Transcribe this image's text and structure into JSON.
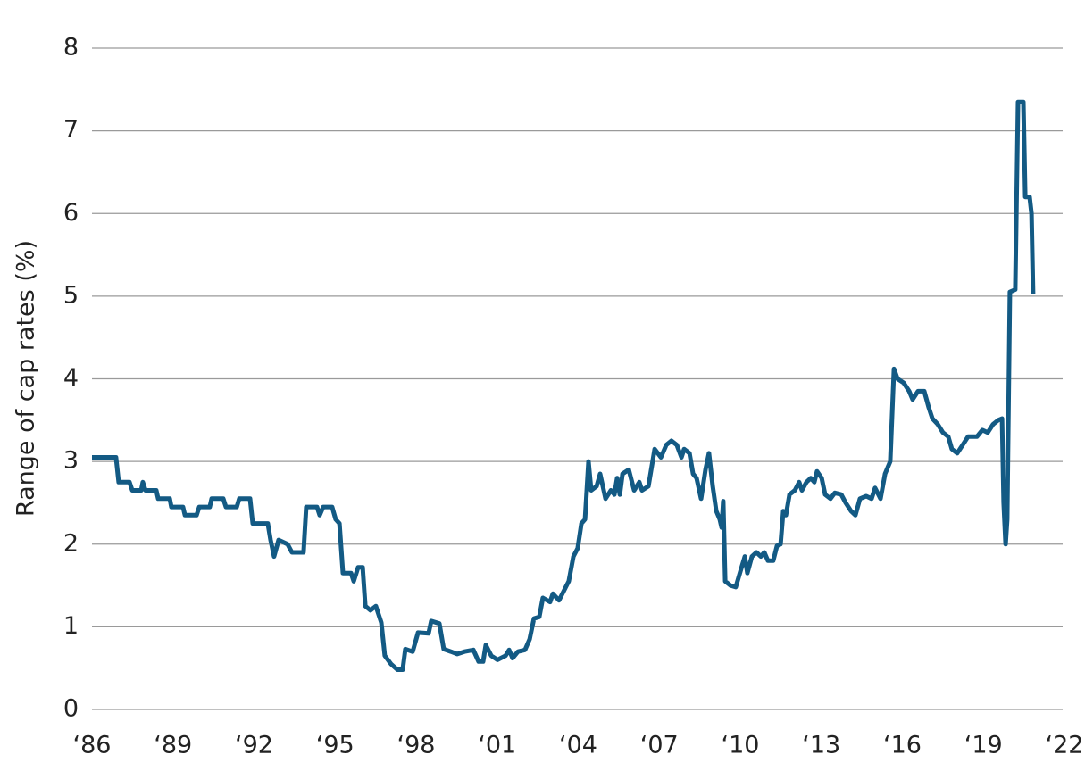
{
  "chart_data": {
    "type": "line",
    "y_label": "Range of cap rates (%)",
    "xlim": [
      1986,
      2022
    ],
    "xticks": [
      {
        "value": 1986,
        "label": "‘86"
      },
      {
        "value": 1989,
        "label": "‘89"
      },
      {
        "value": 1992,
        "label": "‘92"
      },
      {
        "value": 1995,
        "label": "‘95"
      },
      {
        "value": 1998,
        "label": "‘98"
      },
      {
        "value": 2001,
        "label": "‘01"
      },
      {
        "value": 2004,
        "label": "‘04"
      },
      {
        "value": 2007,
        "label": "‘07"
      },
      {
        "value": 2010,
        "label": "‘10"
      },
      {
        "value": 2013,
        "label": "‘13"
      },
      {
        "value": 2016,
        "label": "‘16"
      },
      {
        "value": 2019,
        "label": "‘19"
      },
      {
        "value": 2022,
        "label": "‘22"
      }
    ],
    "ylim": [
      0,
      8
    ],
    "yticks": [
      0,
      1,
      2,
      3,
      4,
      5,
      6,
      7,
      8
    ],
    "grid": true,
    "x": [
      1986.0,
      1986.89,
      1986.99,
      1987.39,
      1987.49,
      1987.82,
      1987.88,
      1987.98,
      1988.38,
      1988.45,
      1988.88,
      1988.94,
      1989.37,
      1989.44,
      1989.87,
      1989.97,
      1990.36,
      1990.43,
      1990.86,
      1990.96,
      1991.36,
      1991.45,
      1991.85,
      1991.95,
      1992.51,
      1992.61,
      1992.74,
      1992.91,
      1993.24,
      1993.4,
      1993.83,
      1993.93,
      1994.33,
      1994.43,
      1994.56,
      1994.89,
      1995.02,
      1995.16,
      1995.29,
      1995.59,
      1995.69,
      1995.85,
      1996.02,
      1996.12,
      1996.31,
      1996.51,
      1996.71,
      1996.84,
      1997.07,
      1997.31,
      1997.5,
      1997.6,
      1997.87,
      1998.07,
      1998.46,
      1998.56,
      1998.86,
      1999.02,
      1999.29,
      1999.52,
      1999.79,
      2000.12,
      2000.31,
      2000.48,
      2000.58,
      2000.78,
      2001.01,
      2001.31,
      2001.44,
      2001.57,
      2001.77,
      2002.03,
      2002.2,
      2002.36,
      2002.56,
      2002.69,
      2002.96,
      2003.06,
      2003.29,
      2003.49,
      2003.65,
      2003.82,
      2003.98,
      2004.12,
      2004.25,
      2004.38,
      2004.48,
      2004.68,
      2004.81,
      2005.01,
      2005.21,
      2005.34,
      2005.44,
      2005.54,
      2005.64,
      2005.87,
      2006.07,
      2006.26,
      2006.36,
      2006.6,
      2006.83,
      2007.06,
      2007.26,
      2007.45,
      2007.65,
      2007.82,
      2007.92,
      2008.12,
      2008.25,
      2008.38,
      2008.55,
      2008.71,
      2008.84,
      2008.98,
      2009.11,
      2009.24,
      2009.31,
      2009.37,
      2009.44,
      2009.64,
      2009.83,
      2010.03,
      2010.17,
      2010.26,
      2010.43,
      2010.6,
      2010.76,
      2010.89,
      2011.02,
      2011.22,
      2011.36,
      2011.49,
      2011.59,
      2011.69,
      2011.82,
      2012.02,
      2012.18,
      2012.28,
      2012.45,
      2012.61,
      2012.74,
      2012.84,
      2013.01,
      2013.14,
      2013.34,
      2013.5,
      2013.74,
      2013.9,
      2014.1,
      2014.26,
      2014.43,
      2014.66,
      2014.86,
      2014.99,
      2015.19,
      2015.36,
      2015.55,
      2015.69,
      2015.82,
      2016.05,
      2016.25,
      2016.38,
      2016.58,
      2016.81,
      2016.98,
      2017.11,
      2017.31,
      2017.5,
      2017.7,
      2017.83,
      2018.03,
      2018.23,
      2018.43,
      2018.76,
      2018.96,
      2019.16,
      2019.36,
      2019.55,
      2019.69,
      2019.75,
      2019.82,
      2019.88,
      2019.98,
      2020.18,
      2020.28,
      2020.48,
      2020.55,
      2020.71,
      2020.78,
      2020.84
    ],
    "series": [
      {
        "color": "#135a84",
        "values": [
          3.05,
          3.05,
          2.75,
          2.75,
          2.65,
          2.65,
          2.75,
          2.65,
          2.65,
          2.55,
          2.55,
          2.45,
          2.45,
          2.35,
          2.35,
          2.45,
          2.45,
          2.55,
          2.55,
          2.45,
          2.45,
          2.55,
          2.55,
          2.25,
          2.25,
          2.05,
          1.85,
          2.05,
          2.0,
          1.9,
          1.9,
          2.45,
          2.45,
          2.35,
          2.45,
          2.45,
          2.3,
          2.25,
          1.65,
          1.65,
          1.55,
          1.72,
          1.72,
          1.25,
          1.2,
          1.25,
          1.05,
          0.65,
          0.55,
          0.48,
          0.48,
          0.73,
          0.7,
          0.93,
          0.92,
          1.07,
          1.04,
          0.73,
          0.7,
          0.67,
          0.7,
          0.72,
          0.58,
          0.58,
          0.78,
          0.65,
          0.6,
          0.65,
          0.72,
          0.62,
          0.7,
          0.72,
          0.85,
          1.1,
          1.12,
          1.35,
          1.3,
          1.4,
          1.32,
          1.45,
          1.55,
          1.85,
          1.95,
          2.25,
          2.3,
          3.0,
          2.65,
          2.7,
          2.85,
          2.55,
          2.65,
          2.6,
          2.8,
          2.6,
          2.85,
          2.9,
          2.65,
          2.75,
          2.65,
          2.7,
          3.15,
          3.05,
          3.2,
          3.25,
          3.2,
          3.05,
          3.15,
          3.1,
          2.85,
          2.8,
          2.55,
          2.9,
          3.1,
          2.7,
          2.4,
          2.3,
          2.2,
          2.52,
          1.55,
          1.5,
          1.48,
          1.7,
          1.85,
          1.65,
          1.85,
          1.9,
          1.85,
          1.9,
          1.8,
          1.8,
          1.98,
          2.0,
          2.4,
          2.35,
          2.6,
          2.65,
          2.75,
          2.65,
          2.75,
          2.8,
          2.75,
          2.88,
          2.8,
          2.6,
          2.55,
          2.62,
          2.6,
          2.5,
          2.4,
          2.35,
          2.55,
          2.58,
          2.55,
          2.68,
          2.55,
          2.85,
          3.0,
          4.12,
          4.0,
          3.95,
          3.85,
          3.75,
          3.85,
          3.85,
          3.65,
          3.52,
          3.45,
          3.35,
          3.3,
          3.15,
          3.1,
          3.2,
          3.3,
          3.3,
          3.38,
          3.35,
          3.45,
          3.5,
          3.52,
          2.5,
          2.0,
          2.3,
          5.05,
          5.08,
          7.35,
          7.35,
          6.2,
          6.2,
          6.0,
          5.02
        ]
      }
    ]
  }
}
